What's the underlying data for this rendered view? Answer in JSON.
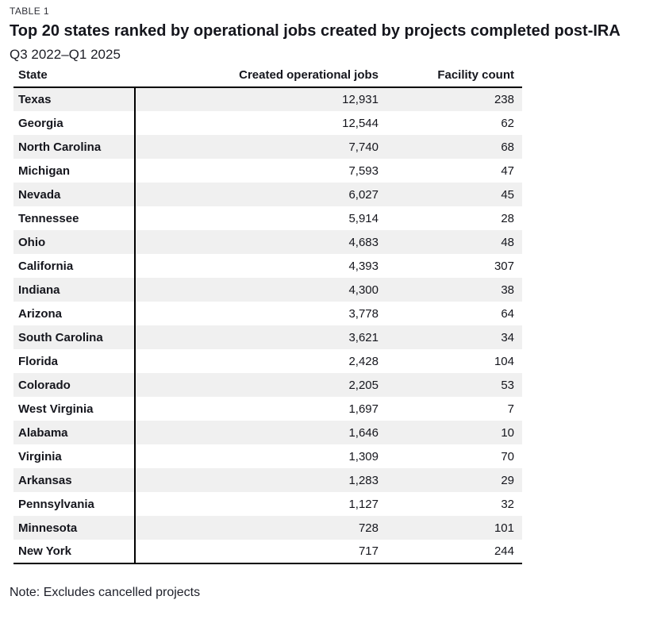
{
  "page": {
    "eyebrow": "TABLE 1",
    "note": "Note: Excludes cancelled projects"
  },
  "colors": {
    "text": "#15161d",
    "row_stripe": "#f0f0f0",
    "border": "#000000",
    "background": "#ffffff"
  },
  "chart_data": {
    "type": "table",
    "title": "Top 20 states ranked by operational jobs created by projects completed post-IRA",
    "subtitle": "Q3 2022–Q1 2025",
    "columns": [
      "State",
      "Created operational jobs",
      "Facility count"
    ],
    "layout": {
      "stripe_rows": "odd",
      "grid": "off",
      "state_column_divider": "vertical-black-rule",
      "value_alignment": "right"
    },
    "rows": [
      {
        "state": "Texas",
        "jobs": "12,931",
        "facility_count": "238"
      },
      {
        "state": "Georgia",
        "jobs": "12,544",
        "facility_count": "62"
      },
      {
        "state": "North Carolina",
        "jobs": "7,740",
        "facility_count": "68"
      },
      {
        "state": "Michigan",
        "jobs": "7,593",
        "facility_count": "47"
      },
      {
        "state": "Nevada",
        "jobs": "6,027",
        "facility_count": "45"
      },
      {
        "state": "Tennessee",
        "jobs": "5,914",
        "facility_count": "28"
      },
      {
        "state": "Ohio",
        "jobs": "4,683",
        "facility_count": "48"
      },
      {
        "state": "California",
        "jobs": "4,393",
        "facility_count": "307"
      },
      {
        "state": "Indiana",
        "jobs": "4,300",
        "facility_count": "38"
      },
      {
        "state": "Arizona",
        "jobs": "3,778",
        "facility_count": "64"
      },
      {
        "state": "South Carolina",
        "jobs": "3,621",
        "facility_count": "34"
      },
      {
        "state": "Florida",
        "jobs": "2,428",
        "facility_count": "104"
      },
      {
        "state": "Colorado",
        "jobs": "2,205",
        "facility_count": "53"
      },
      {
        "state": "West Virginia",
        "jobs": "1,697",
        "facility_count": "7"
      },
      {
        "state": "Alabama",
        "jobs": "1,646",
        "facility_count": "10"
      },
      {
        "state": "Virginia",
        "jobs": "1,309",
        "facility_count": "70"
      },
      {
        "state": "Arkansas",
        "jobs": "1,283",
        "facility_count": "29"
      },
      {
        "state": "Pennsylvania",
        "jobs": "1,127",
        "facility_count": "32"
      },
      {
        "state": "Minnesota",
        "jobs": "728",
        "facility_count": "101"
      },
      {
        "state": "New York",
        "jobs": "717",
        "facility_count": "244"
      }
    ]
  }
}
